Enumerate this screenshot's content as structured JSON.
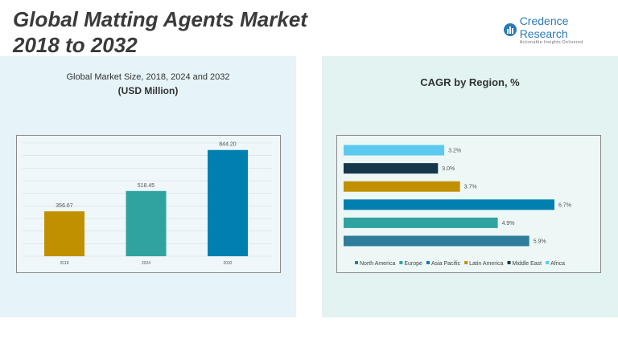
{
  "header": {
    "title_line1": "Global Matting Agents Market",
    "title_line2": "2018 to 2032",
    "logo_name": "Credence Research",
    "logo_tagline": "Actionable Insights Delivered"
  },
  "chart_data": [
    {
      "type": "bar",
      "title": "Global Market Size, 2018, 2024 and 2032",
      "subtitle": "(USD Million)",
      "categories": [
        "2018",
        "2024",
        "2032"
      ],
      "values": [
        356.67,
        518.45,
        844.2
      ],
      "labels": [
        "356.67",
        "518.45",
        "844.20"
      ],
      "colors": [
        "#c09000",
        "#30a3a0",
        "#0080b0"
      ],
      "ylim": [
        0,
        900
      ],
      "grid": true
    },
    {
      "type": "bar",
      "orientation": "horizontal",
      "title": "CAGR by Region, %",
      "categories": [
        "North America",
        "Europe",
        "Asia Pacific",
        "Latin America",
        "Middle East",
        "Africa"
      ],
      "values": [
        5.9,
        4.9,
        6.7,
        3.7,
        3.0,
        3.2
      ],
      "labels": [
        "5.9%",
        "4.9%",
        "6.7%",
        "3.7%",
        "3.0%",
        "3.2%"
      ],
      "colors": [
        "#2e7d9a",
        "#30a3a0",
        "#0080b0",
        "#c09000",
        "#17384a",
        "#5ccaf0"
      ],
      "legend": "bottom"
    }
  ]
}
